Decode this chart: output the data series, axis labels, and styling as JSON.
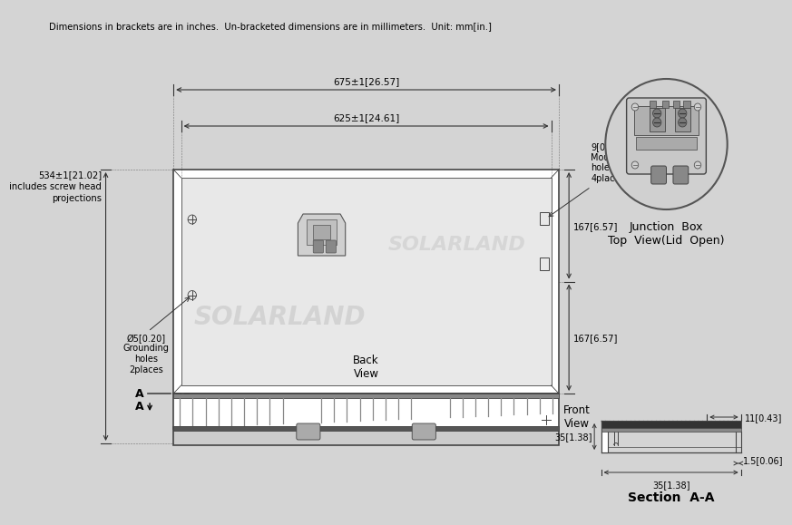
{
  "bg_color": "#d4d4d4",
  "title_note": "Dimensions in brackets are in inches.  Un-bracketed dimensions are in millimeters.  Unit: mm[in.]",
  "dim_675": "675±1[26.57]",
  "dim_625": "625±1[24.61]",
  "dim_534_line1": "534±1[21.02]",
  "dim_534_line2": "includes screw head",
  "dim_534_line3": "projections",
  "dim_167a": "167[6.57]",
  "dim_167b": "167[6.57]",
  "dim_hole": "Ø5[0.20]",
  "dim_grounding": "Grounding\nholes\n2places",
  "dim_mounting": "9[0.35]x14[0.55]\nMounting\nholes\n4places",
  "label_back": "Back\nView",
  "label_front": "Front\nView",
  "label_sectionAA": "Section  A-A",
  "label_junctionbox": "Junction  Box\nTop  View(Lid  Open)",
  "dim_11": "11[0.43]",
  "dim_35a": "35[1.38]",
  "dim_15": "1.5[0.06]",
  "dim_35b": "35[1.38]",
  "label_A": "A",
  "watermark1": "SOLARLAND",
  "watermark2": "SOLARLAND"
}
